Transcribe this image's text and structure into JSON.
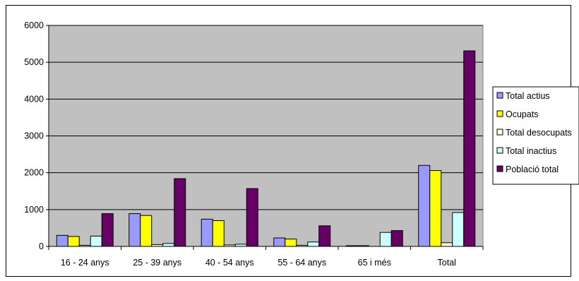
{
  "chart_data": {
    "type": "bar",
    "title": "",
    "xlabel": "",
    "ylabel": "",
    "ylim": [
      0,
      6000
    ],
    "yticks": [
      "0",
      "1000",
      "2000",
      "3000",
      "4000",
      "5000",
      "6000"
    ],
    "grid": true,
    "plot_background": "#c0c0c0",
    "legend_position": "right",
    "categories": [
      "16 - 24 anys",
      "25 - 39 anys",
      "40 - 54 anys",
      "55 - 64 anys",
      "65 i més",
      "Total"
    ],
    "series": [
      {
        "name": "Total actius",
        "color": "#9999ff",
        "values": [
          300,
          890,
          740,
          230,
          20,
          2200
        ]
      },
      {
        "name": "Ocupats",
        "color": "#ffff00",
        "values": [
          270,
          840,
          700,
          200,
          20,
          2060
        ]
      },
      {
        "name": "Total desocupats",
        "color": "#ffffcc",
        "values": [
          30,
          50,
          40,
          30,
          0,
          100
        ]
      },
      {
        "name": "Total inactius",
        "color": "#ccffff",
        "values": [
          280,
          80,
          60,
          120,
          380,
          920
        ]
      },
      {
        "name": "Població total",
        "color": "#660066",
        "values": [
          890,
          1840,
          1570,
          560,
          430,
          5310
        ]
      }
    ]
  }
}
